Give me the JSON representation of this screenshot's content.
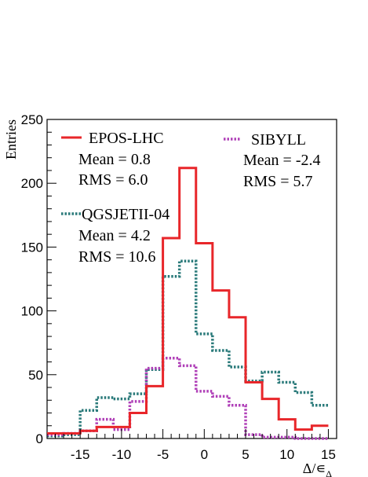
{
  "chart_data": {
    "type": "histogram",
    "title": "",
    "ylabel": "Entries",
    "xlabel": "Δ/∊",
    "xlabel_subscript": "Δ",
    "xlim": [
      -19,
      16
    ],
    "ylim": [
      0,
      250
    ],
    "grid": false,
    "bin_edges": [
      -19,
      -17,
      -15,
      -13,
      -11,
      -9,
      -7,
      -5,
      -3,
      -1,
      1,
      3,
      5,
      7,
      9,
      11,
      13,
      15,
      16
    ],
    "x_ticks": [
      -15,
      -10,
      -5,
      0,
      5,
      10,
      15
    ],
    "y_ticks": [
      0,
      50,
      100,
      150,
      200,
      250
    ],
    "series": [
      {
        "name": "EPOS-LHC",
        "color": "#e8262a",
        "line": "solid",
        "mean_label": "Mean = 0.8",
        "rms_label": "RMS = 6.0",
        "values": [
          4,
          4,
          6,
          9,
          9,
          20,
          41,
          157,
          212,
          153,
          116,
          95,
          44,
          31,
          15,
          7,
          10
        ]
      },
      {
        "name": "QGSJETII-04",
        "color": "#2a7a7a",
        "line": "dotted",
        "mean_label": "Mean = 4.2",
        "rms_label": "RMS = 10.6",
        "values": [
          2,
          3,
          22,
          32,
          31,
          35,
          54,
          127,
          139,
          82,
          69,
          56,
          45,
          52,
          44,
          36,
          26
        ]
      },
      {
        "name": "SIBYLL",
        "color": "#b040b8",
        "line": "dotted",
        "mean_label": "Mean = -2.4",
        "rms_label": "RMS = 5.7",
        "values": [
          3,
          4,
          6,
          15,
          7,
          29,
          55,
          63,
          57,
          37,
          33,
          26,
          3,
          1,
          1,
          0,
          0
        ]
      }
    ]
  }
}
